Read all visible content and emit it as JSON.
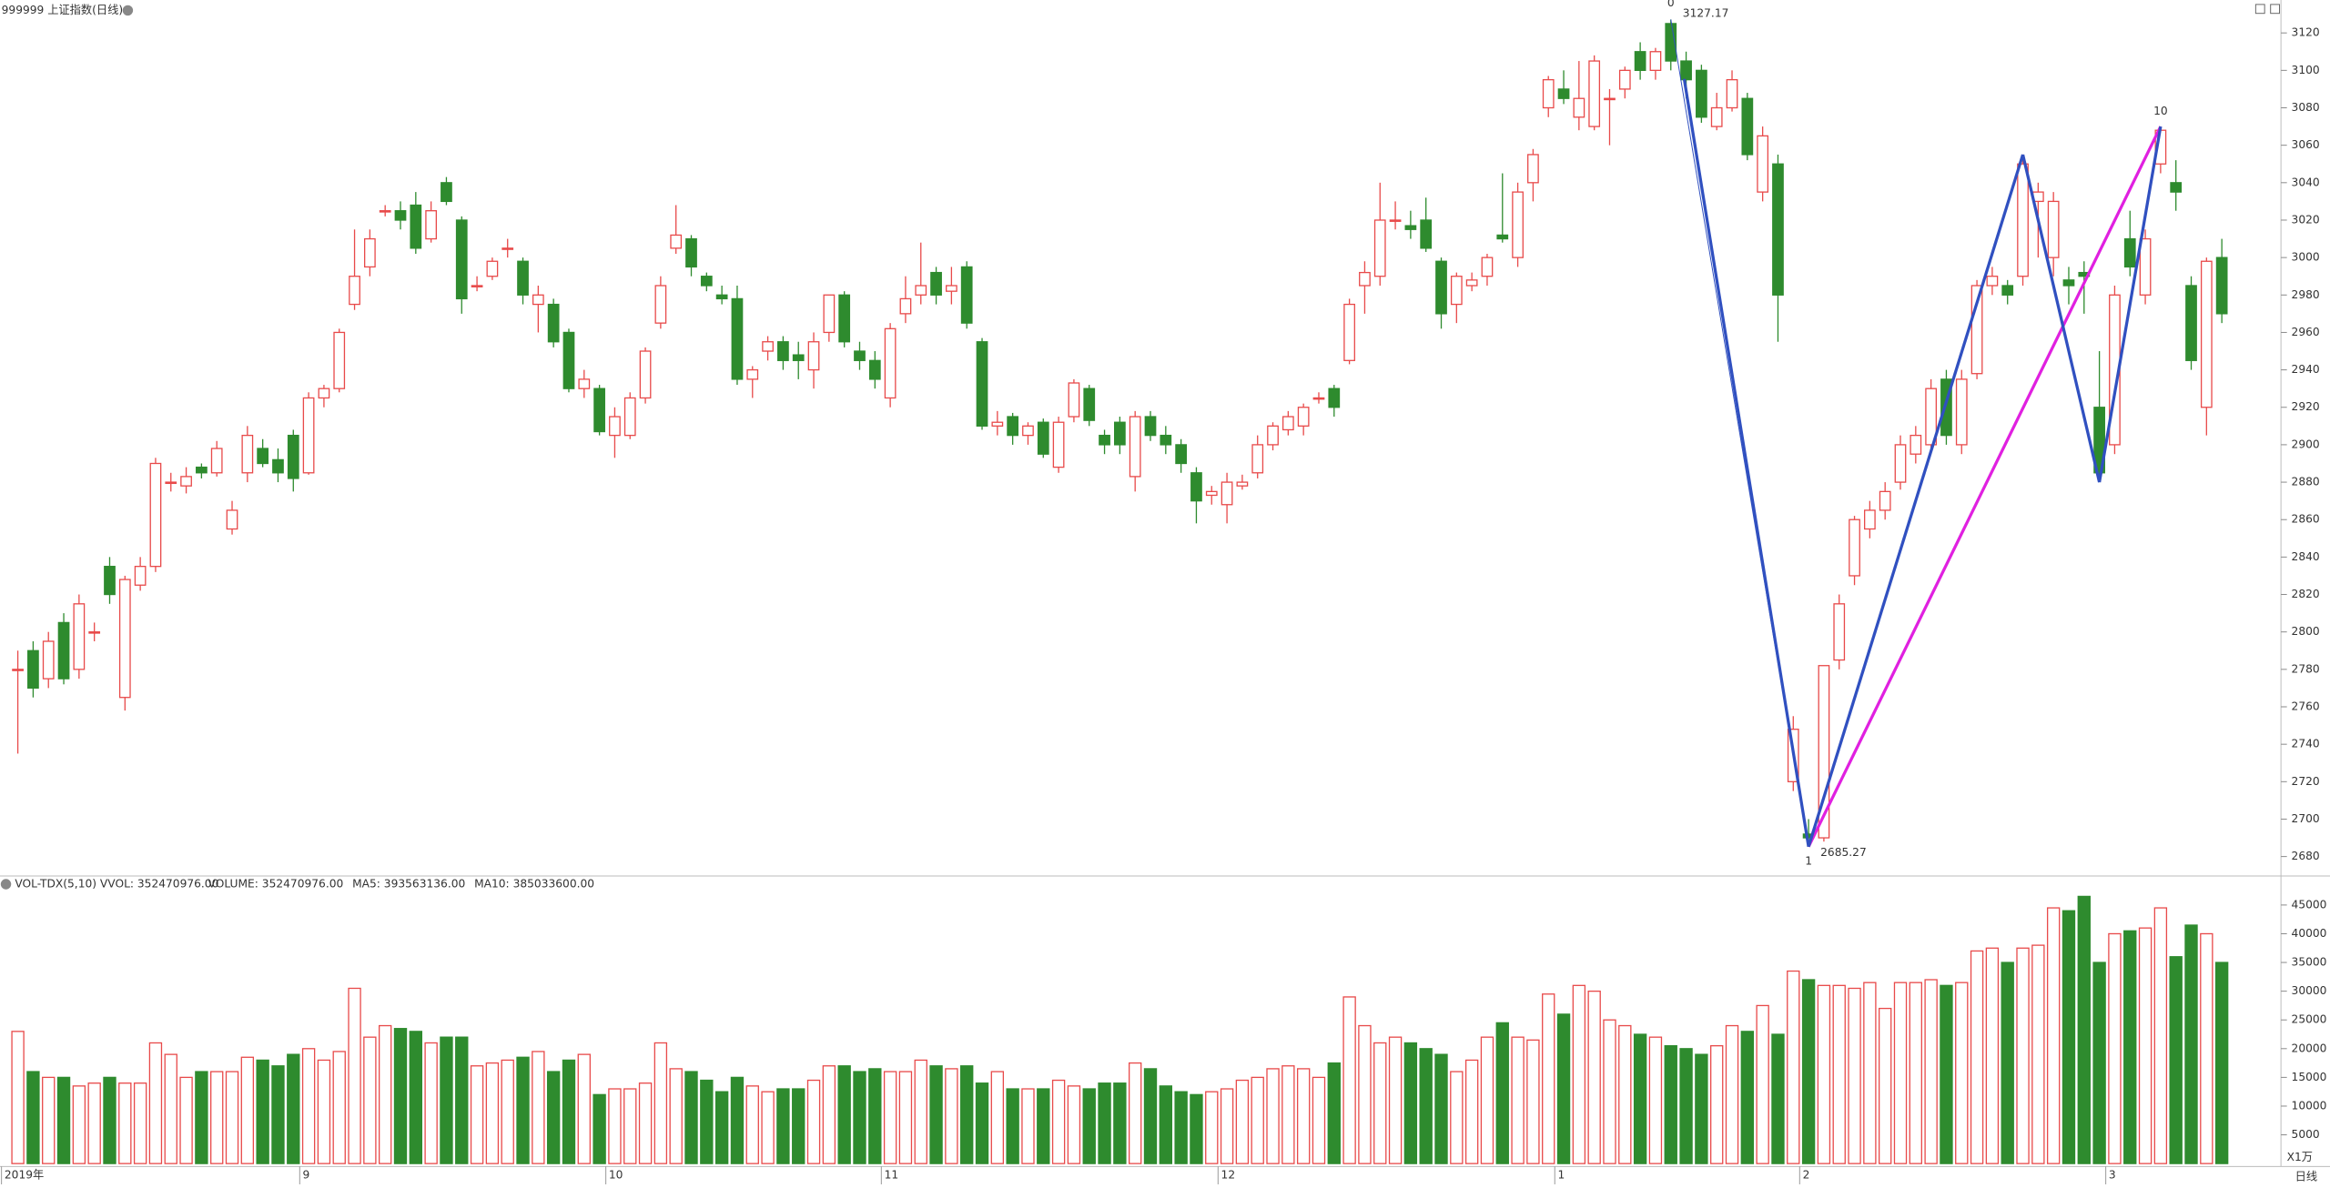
{
  "chart_data": [
    {
      "type": "candlestick",
      "title": "999999 上证指数(日线)",
      "categories": [
        "2019年",
        null,
        null,
        null,
        null,
        null,
        null,
        null,
        null,
        null,
        null,
        null,
        null,
        null,
        null,
        null,
        null,
        null,
        null,
        "9",
        null,
        null,
        null,
        null,
        null,
        null,
        null,
        null,
        null,
        null,
        null,
        null,
        null,
        null,
        null,
        null,
        null,
        null,
        null,
        "10",
        null,
        null,
        null,
        null,
        null,
        null,
        null,
        null,
        null,
        null,
        null,
        null,
        null,
        null,
        null,
        null,
        null,
        "11",
        null,
        null,
        null,
        null,
        null,
        null,
        null,
        null,
        null,
        null,
        null,
        null,
        null,
        null,
        null,
        null,
        null,
        null,
        null,
        null,
        null,
        "12",
        null,
        null,
        null,
        null,
        null,
        null,
        null,
        null,
        null,
        null,
        null,
        null,
        null,
        null,
        null,
        null,
        null,
        null,
        null,
        null,
        null,
        "1",
        null,
        null,
        null,
        null,
        null,
        null,
        null,
        null,
        null,
        null,
        null,
        null,
        null,
        null,
        null,
        "2",
        null,
        null,
        null,
        null,
        null,
        null,
        null,
        null,
        null,
        null,
        null,
        null,
        null,
        null,
        null,
        null,
        null,
        null,
        null,
        "3",
        null,
        null,
        null,
        null,
        null,
        null,
        null
      ],
      "ohlc": [
        [
          2780,
          2790,
          2735,
          2780
        ],
        [
          2790,
          2795,
          2765,
          2770
        ],
        [
          2775,
          2800,
          2770,
          2795
        ],
        [
          2805,
          2810,
          2772,
          2775
        ],
        [
          2780,
          2820,
          2775,
          2815
        ],
        [
          2800,
          2805,
          2795,
          2800
        ],
        [
          2835,
          2840,
          2815,
          2820
        ],
        [
          2765,
          2830,
          2758,
          2828
        ],
        [
          2825,
          2840,
          2822,
          2835
        ],
        [
          2835,
          2893,
          2832,
          2890
        ],
        [
          2880,
          2885,
          2875,
          2880
        ],
        [
          2878,
          2888,
          2874,
          2883
        ],
        [
          2888,
          2890,
          2882,
          2885
        ],
        [
          2885,
          2902,
          2883,
          2898
        ],
        [
          2855,
          2870,
          2852,
          2865
        ],
        [
          2885,
          2910,
          2880,
          2905
        ],
        [
          2898,
          2903,
          2888,
          2890
        ],
        [
          2892,
          2898,
          2880,
          2885
        ],
        [
          2905,
          2908,
          2875,
          2882
        ],
        [
          2885,
          2928,
          2884,
          2925
        ],
        [
          2925,
          2932,
          2920,
          2930
        ],
        [
          2930,
          2962,
          2928,
          2960
        ],
        [
          2975,
          3015,
          2972,
          2990
        ],
        [
          2995,
          3015,
          2990,
          3010
        ],
        [
          3025,
          3028,
          3022,
          3025
        ],
        [
          3025,
          3030,
          3015,
          3020
        ],
        [
          3028,
          3035,
          3002,
          3005
        ],
        [
          3010,
          3030,
          3008,
          3025
        ],
        [
          3040,
          3043,
          3028,
          3030
        ],
        [
          3020,
          3022,
          2970,
          2978
        ],
        [
          2985,
          2990,
          2982,
          2985
        ],
        [
          2990,
          3000,
          2988,
          2998
        ],
        [
          3005,
          3010,
          3000,
          3005
        ],
        [
          2998,
          3000,
          2975,
          2980
        ],
        [
          2975,
          2985,
          2960,
          2980
        ],
        [
          2975,
          2978,
          2952,
          2955
        ],
        [
          2960,
          2962,
          2928,
          2930
        ],
        [
          2930,
          2940,
          2925,
          2935
        ],
        [
          2930,
          2932,
          2905,
          2907
        ],
        [
          2905,
          2920,
          2893,
          2915
        ],
        [
          2905,
          2928,
          2903,
          2925
        ],
        [
          2925,
          2952,
          2922,
          2950
        ],
        [
          2965,
          2990,
          2962,
          2985
        ],
        [
          3005,
          3028,
          3002,
          3012
        ],
        [
          3010,
          3012,
          2990,
          2995
        ],
        [
          2990,
          2992,
          2982,
          2985
        ],
        [
          2980,
          2985,
          2975,
          2978
        ],
        [
          2978,
          2985,
          2932,
          2935
        ],
        [
          2935,
          2942,
          2925,
          2940
        ],
        [
          2950,
          2958,
          2945,
          2955
        ],
        [
          2955,
          2958,
          2940,
          2945
        ],
        [
          2948,
          2955,
          2935,
          2945
        ],
        [
          2940,
          2960,
          2930,
          2955
        ],
        [
          2960,
          2980,
          2955,
          2980
        ],
        [
          2980,
          2982,
          2952,
          2955
        ],
        [
          2950,
          2955,
          2940,
          2945
        ],
        [
          2945,
          2950,
          2930,
          2935
        ],
        [
          2925,
          2965,
          2920,
          2962
        ],
        [
          2970,
          2990,
          2965,
          2978
        ],
        [
          2980,
          3008,
          2975,
          2985
        ],
        [
          2992,
          2995,
          2975,
          2980
        ],
        [
          2982,
          2995,
          2975,
          2985
        ],
        [
          2995,
          2998,
          2962,
          2965
        ],
        [
          2955,
          2957,
          2908,
          2910
        ],
        [
          2910,
          2918,
          2905,
          2912
        ],
        [
          2915,
          2917,
          2900,
          2905
        ],
        [
          2905,
          2912,
          2900,
          2910
        ],
        [
          2912,
          2914,
          2893,
          2895
        ],
        [
          2888,
          2915,
          2885,
          2912
        ],
        [
          2915,
          2935,
          2912,
          2933
        ],
        [
          2930,
          2932,
          2910,
          2913
        ],
        [
          2905,
          2908,
          2895,
          2900
        ],
        [
          2912,
          2915,
          2895,
          2900
        ],
        [
          2883,
          2918,
          2875,
          2915
        ],
        [
          2915,
          2918,
          2902,
          2905
        ],
        [
          2905,
          2910,
          2895,
          2900
        ],
        [
          2900,
          2903,
          2885,
          2890
        ],
        [
          2885,
          2888,
          2858,
          2870
        ],
        [
          2873,
          2878,
          2868,
          2875
        ],
        [
          2868,
          2885,
          2858,
          2880
        ],
        [
          2878,
          2884,
          2876,
          2880
        ],
        [
          2885,
          2905,
          2882,
          2900
        ],
        [
          2900,
          2912,
          2897,
          2910
        ],
        [
          2908,
          2918,
          2905,
          2915
        ],
        [
          2910,
          2922,
          2905,
          2920
        ],
        [
          2925,
          2928,
          2922,
          2925
        ],
        [
          2930,
          2932,
          2915,
          2920
        ],
        [
          2945,
          2978,
          2943,
          2975
        ],
        [
          2985,
          2998,
          2970,
          2992
        ],
        [
          2990,
          3040,
          2985,
          3020
        ],
        [
          3020,
          3030,
          3015,
          3020
        ],
        [
          3017,
          3025,
          3010,
          3015
        ],
        [
          3020,
          3032,
          3003,
          3005
        ],
        [
          2998,
          3000,
          2962,
          2970
        ],
        [
          2975,
          2992,
          2965,
          2990
        ],
        [
          2985,
          2992,
          2982,
          2988
        ],
        [
          2990,
          3002,
          2985,
          3000
        ],
        [
          3012,
          3045,
          3008,
          3010
        ],
        [
          3000,
          3040,
          2995,
          3035
        ],
        [
          3040,
          3058,
          3030,
          3055
        ],
        [
          3080,
          3097,
          3075,
          3095
        ],
        [
          3090,
          3100,
          3082,
          3085
        ],
        [
          3075,
          3105,
          3068,
          3085
        ],
        [
          3070,
          3108,
          3068,
          3105
        ],
        [
          3085,
          3090,
          3060,
          3085
        ],
        [
          3090,
          3102,
          3085,
          3100
        ],
        [
          3110,
          3115,
          3095,
          3100
        ],
        [
          3100,
          3112,
          3095,
          3110
        ],
        [
          3125,
          3127.17,
          3100,
          3105
        ],
        [
          3105,
          3110,
          3085,
          3095
        ],
        [
          3100,
          3103,
          3072,
          3075
        ],
        [
          3070,
          3088,
          3068,
          3080
        ],
        [
          3080,
          3100,
          3078,
          3095
        ],
        [
          3085,
          3088,
          3052,
          3055
        ],
        [
          3035,
          3070,
          3030,
          3065
        ],
        [
          3050,
          3055,
          2955,
          2980
        ],
        [
          2720,
          2755,
          2715,
          2748
        ],
        [
          2692,
          2700,
          2685.27,
          2690
        ],
        [
          2690,
          2782,
          2688,
          2782
        ],
        [
          2785,
          2820,
          2780,
          2815
        ],
        [
          2830,
          2862,
          2825,
          2860
        ],
        [
          2855,
          2870,
          2850,
          2865
        ],
        [
          2865,
          2880,
          2860,
          2875
        ],
        [
          2880,
          2905,
          2876,
          2900
        ],
        [
          2895,
          2910,
          2890,
          2905
        ],
        [
          2900,
          2935,
          2895,
          2930
        ],
        [
          2935,
          2940,
          2900,
          2905
        ],
        [
          2900,
          2940,
          2895,
          2935
        ],
        [
          2938,
          2988,
          2935,
          2985
        ],
        [
          2985,
          2995,
          2980,
          2990
        ],
        [
          2985,
          2988,
          2975,
          2980
        ],
        [
          2990,
          3055,
          2985,
          3050
        ],
        [
          3030,
          3040,
          3000,
          3035
        ],
        [
          3000,
          3035,
          2990,
          3030
        ],
        [
          2988,
          2995,
          2975,
          2985
        ],
        [
          2992,
          2998,
          2970,
          2990
        ],
        [
          2920,
          2950,
          2880,
          2885
        ],
        [
          2900,
          2985,
          2895,
          2980
        ],
        [
          3010,
          3025,
          2990,
          2995
        ],
        [
          2980,
          3015,
          2975,
          3010
        ],
        [
          3050,
          3070,
          3045,
          3068
        ],
        [
          3040,
          3052,
          3025,
          3035
        ],
        [
          2985,
          2990,
          2940,
          2945
        ],
        [
          2920,
          3000,
          2905,
          2998
        ],
        [
          3000,
          3010,
          2965,
          2970
        ]
      ],
      "up_color": "#e84a4a",
      "down_color": "#2e8b2e",
      "annotations": [
        "0",
        "1",
        "10"
      ],
      "extreme_labels": [
        "3127.17",
        "2685.27"
      ],
      "ylim": [
        2670,
        3136
      ],
      "yticks": [
        2680,
        2700,
        2720,
        2740,
        2760,
        2780,
        2800,
        2820,
        2840,
        2860,
        2880,
        2900,
        2920,
        2940,
        2960,
        2980,
        3000,
        3020,
        3040,
        3060,
        3080,
        3100,
        3120
      ]
    },
    {
      "type": "bar",
      "title": "VOL-TDX(5,10) VVOL: 352470976.00",
      "legend": [
        {
          "name": "VOLUME: 352470976.00",
          "color": "#1f77c4"
        },
        {
          "name": "MA5: 393563136.00",
          "color": "#1f77c4"
        },
        {
          "name": "MA10: 385033600.00",
          "color": "#a0208c"
        }
      ],
      "values": [
        23000,
        16000,
        15000,
        15000,
        13500,
        14000,
        15000,
        14000,
        14000,
        21000,
        19000,
        15000,
        16000,
        16000,
        16000,
        18500,
        18000,
        17000,
        19000,
        20000,
        18000,
        19500,
        30500,
        22000,
        24000,
        23500,
        23000,
        21000,
        22000,
        22000,
        17000,
        17500,
        18000,
        18500,
        19500,
        16000,
        18000,
        19000,
        12000,
        13000,
        13000,
        14000,
        21000,
        16500,
        16000,
        14500,
        12500,
        15000,
        13500,
        12500,
        13000,
        13000,
        14500,
        17000,
        17000,
        16000,
        16500,
        16000,
        16000,
        18000,
        17000,
        16500,
        17000,
        14000,
        16000,
        13000,
        13000,
        13000,
        14500,
        13500,
        13000,
        14000,
        14000,
        17500,
        16500,
        13500,
        12500,
        12000,
        12500,
        13000,
        14500,
        15000,
        16500,
        17000,
        16500,
        15000,
        17500,
        29000,
        24000,
        21000,
        22000,
        21000,
        20000,
        19000,
        16000,
        18000,
        22000,
        24500,
        22000,
        21500,
        29500,
        26000,
        31000,
        30000,
        25000,
        24000,
        22500,
        22000,
        20500,
        20000,
        19000,
        20500,
        24000,
        23000,
        27500,
        22500,
        33500,
        32000,
        31000,
        31000,
        30500,
        31500,
        27000,
        31500,
        31500,
        32000,
        31000,
        31500,
        37000,
        37500,
        35000,
        37500,
        38000,
        44500,
        44000,
        46500,
        35000,
        40000,
        40500,
        41000,
        44500,
        36000,
        41500,
        40000,
        35000
      ],
      "unit_label": "X1万",
      "ylim": [
        0,
        49400
      ],
      "yticks": [
        5000,
        10000,
        15000,
        20000,
        25000,
        30000,
        35000,
        40000,
        45000
      ]
    }
  ],
  "period_label": "日线"
}
